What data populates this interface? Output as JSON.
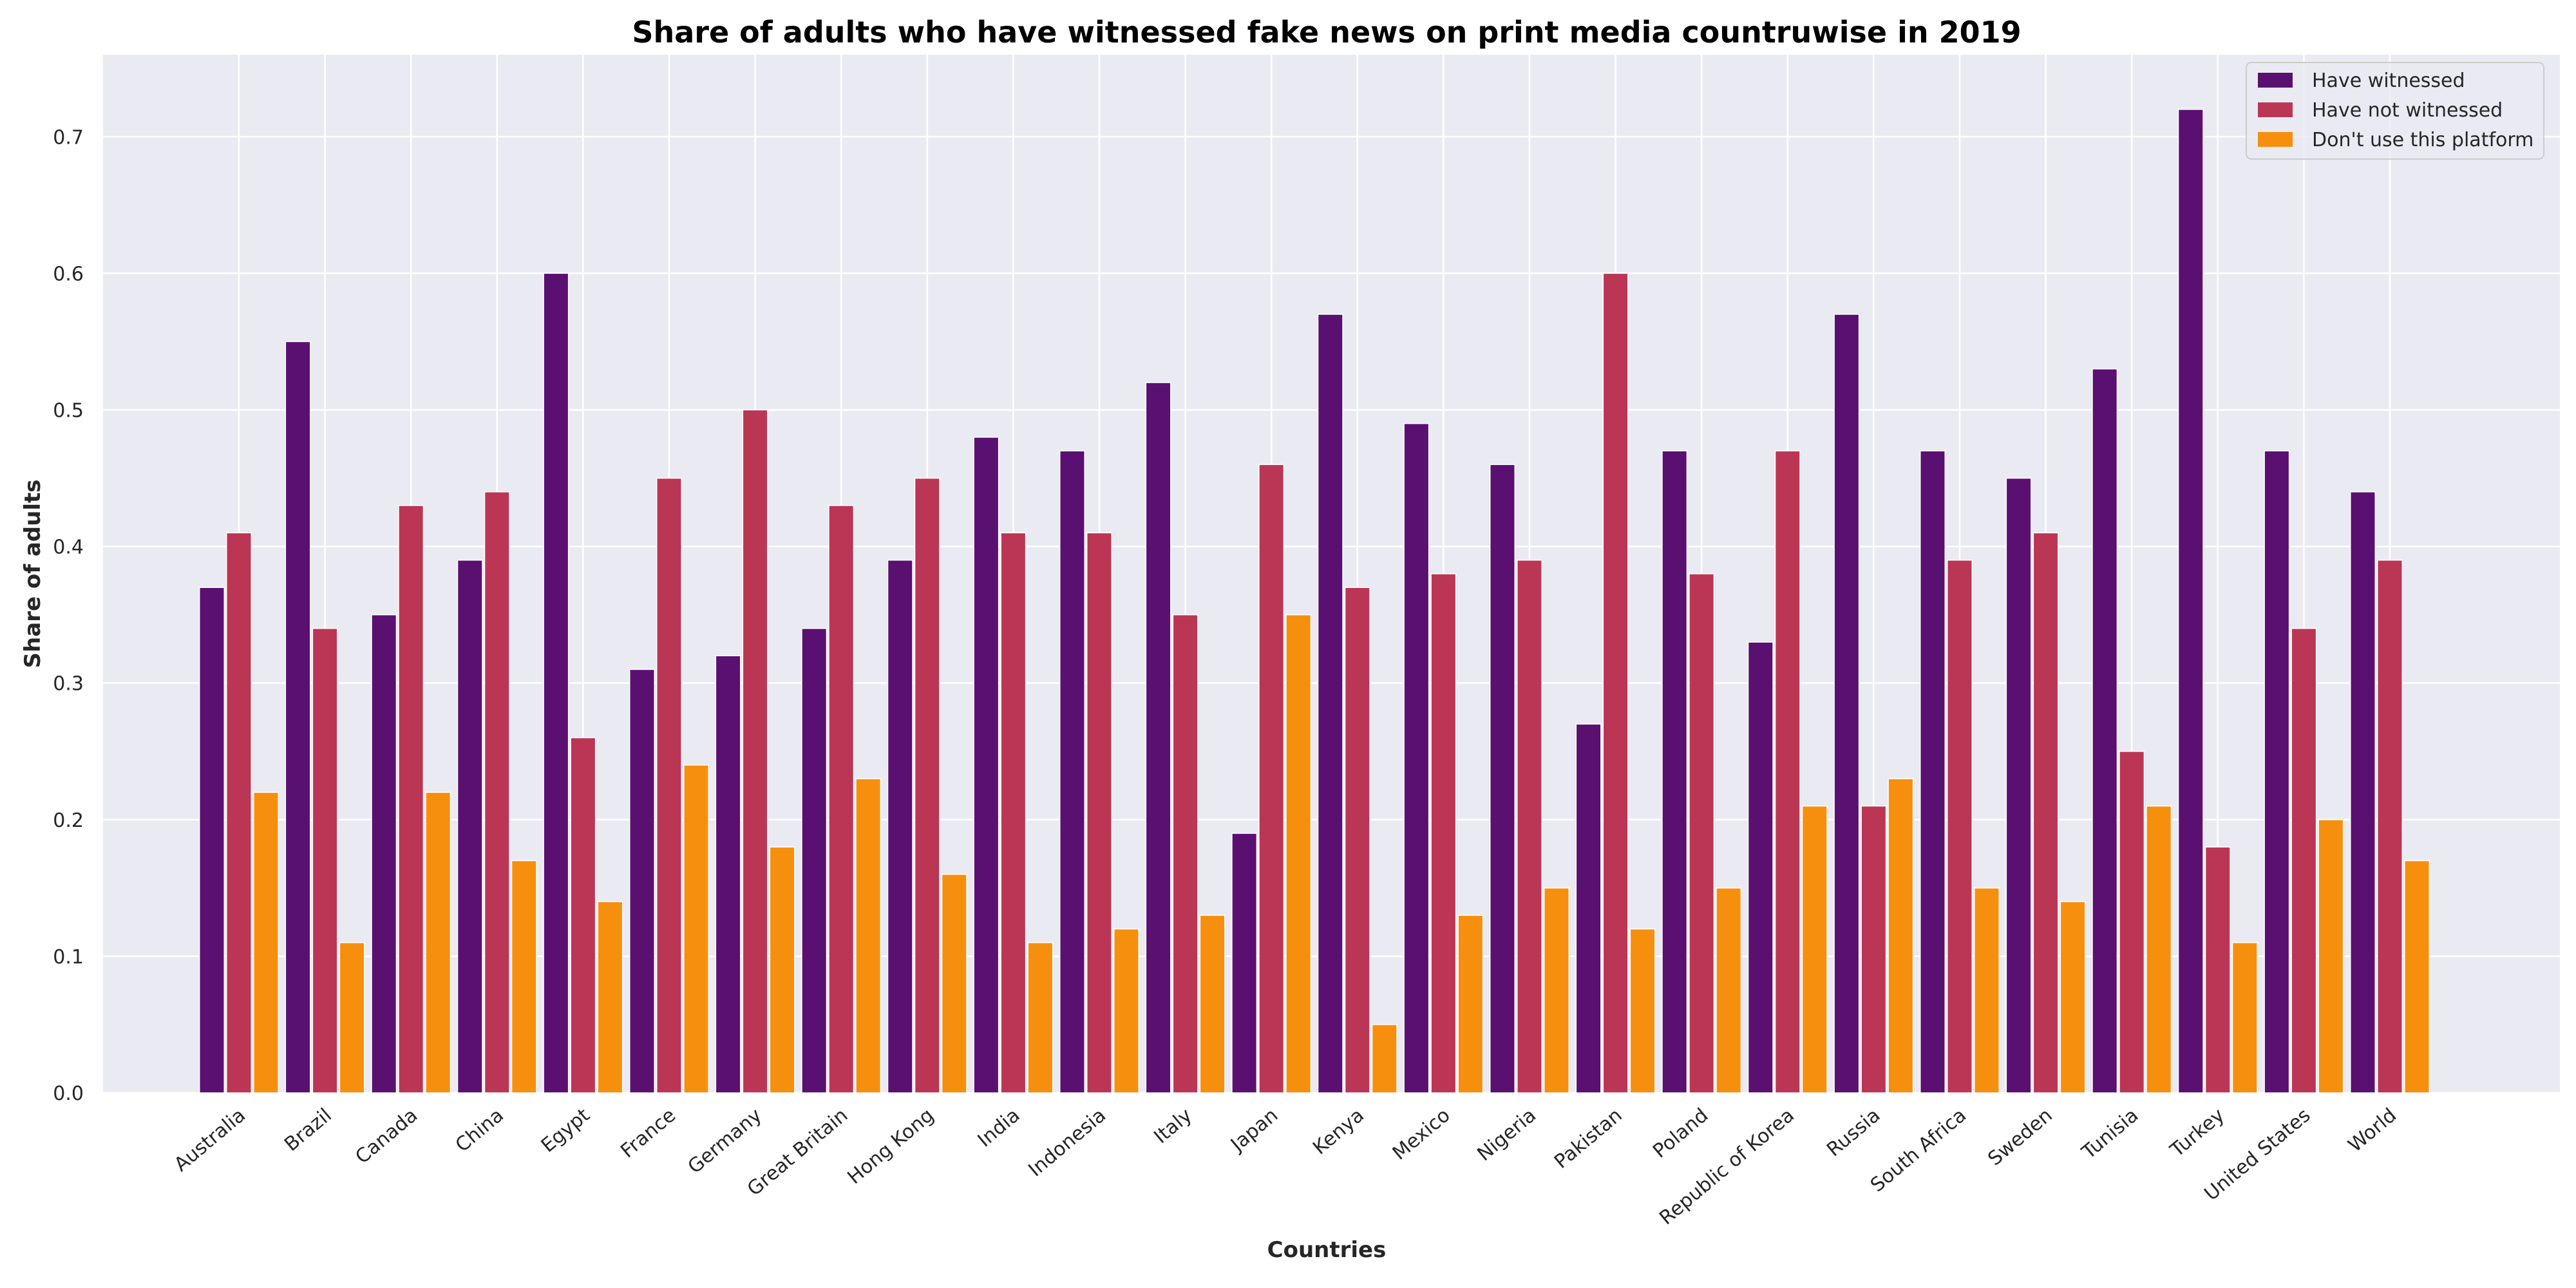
{
  "chart_data": {
    "type": "bar",
    "title": "Share of adults who have witnessed fake news on print media countruwise in 2019",
    "xlabel": "Countries",
    "ylabel": "Share of adults",
    "ylim": [
      0,
      0.76
    ],
    "yticks": [
      "0.0",
      "0.1",
      "0.2",
      "0.3",
      "0.4",
      "0.5",
      "0.6",
      "0.7"
    ],
    "grid": true,
    "legend_position": "top-right",
    "categories": [
      "Australia",
      "Brazil",
      "Canada",
      "China",
      "Egypt",
      "France",
      "Germany",
      "Great Britain",
      "Hong Kong",
      "India",
      "Indonesia",
      "Italy",
      "Japan",
      "Kenya",
      "Mexico",
      "Nigeria",
      "Pakistan",
      "Poland",
      "Republic of Korea",
      "Russia",
      "South Africa",
      "Sweden",
      "Tunisia",
      "Turkey",
      "United States",
      "World"
    ],
    "series": [
      {
        "name": "Have witnessed",
        "color": "#5a1070",
        "values": [
          0.37,
          0.55,
          0.35,
          0.39,
          0.6,
          0.31,
          0.32,
          0.34,
          0.39,
          0.48,
          0.47,
          0.52,
          0.19,
          0.57,
          0.49,
          0.46,
          0.27,
          0.47,
          0.33,
          0.57,
          0.47,
          0.45,
          0.53,
          0.72,
          0.47,
          0.44
        ]
      },
      {
        "name": "Have not witnessed",
        "color": "#bb3654",
        "values": [
          0.41,
          0.34,
          0.43,
          0.44,
          0.26,
          0.45,
          0.5,
          0.43,
          0.45,
          0.41,
          0.41,
          0.35,
          0.46,
          0.37,
          0.38,
          0.39,
          0.6,
          0.38,
          0.47,
          0.21,
          0.39,
          0.41,
          0.25,
          0.18,
          0.34,
          0.39
        ]
      },
      {
        "name": "Don't use this platform",
        "color": "#f78f0e",
        "values": [
          0.22,
          0.11,
          0.22,
          0.17,
          0.14,
          0.24,
          0.18,
          0.23,
          0.16,
          0.11,
          0.12,
          0.13,
          0.35,
          0.05,
          0.13,
          0.15,
          0.12,
          0.15,
          0.21,
          0.23,
          0.15,
          0.14,
          0.21,
          0.11,
          0.2,
          0.17
        ]
      }
    ]
  }
}
